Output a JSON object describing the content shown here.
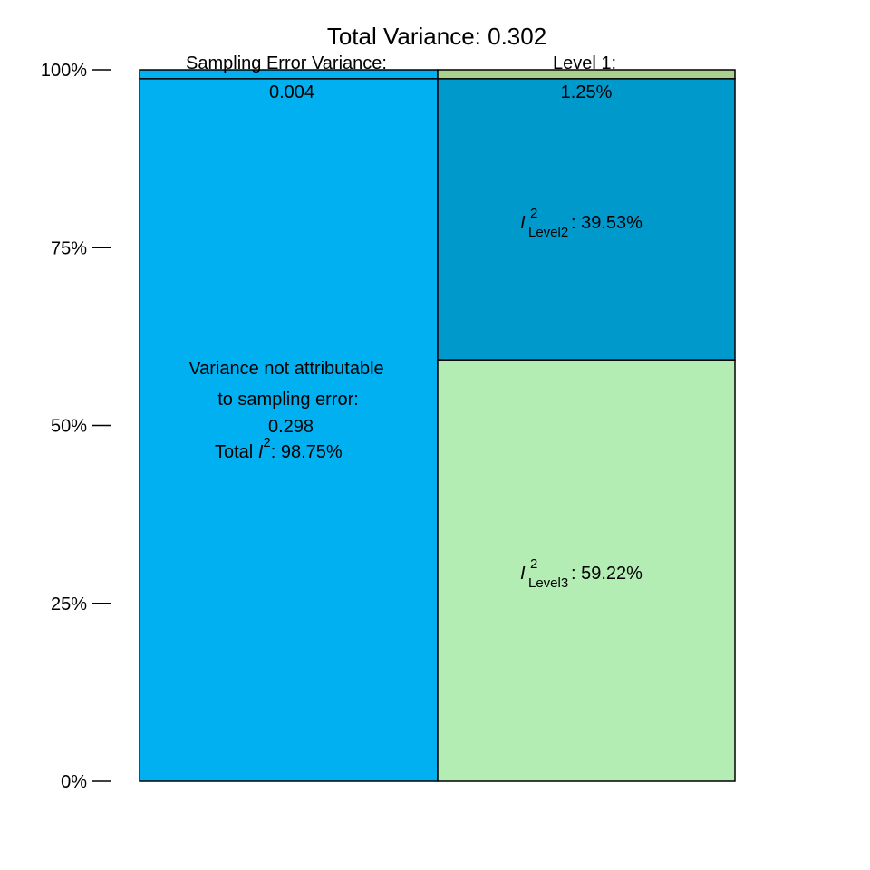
{
  "chart_data": {
    "type": "bar",
    "title": "Total Variance: 0.302",
    "ylim": [
      0,
      100
    ],
    "y_ticks": [
      0,
      25,
      50,
      75,
      100
    ],
    "y_tick_labels": [
      "0%",
      "25%",
      "50%",
      "75%",
      "100%"
    ],
    "grid": false,
    "colors": {
      "sampling_error": "#00B0F0",
      "level1": "#A9D18E",
      "level2": "#0099CC",
      "level3": "#B4EDB4",
      "border": "#000000"
    },
    "columns": [
      {
        "segments": [
          {
            "key": "not_attributable",
            "from": 0,
            "to": 98.75,
            "color": "#00B0F0"
          },
          {
            "key": "sampling_error",
            "from": 98.75,
            "to": 100,
            "color": "#00B0F0"
          }
        ]
      },
      {
        "segments": [
          {
            "key": "level3",
            "from": 0,
            "to": 59.22,
            "color": "#B4EDB4"
          },
          {
            "key": "level2",
            "from": 59.22,
            "to": 98.75,
            "color": "#0099CC"
          },
          {
            "key": "level1",
            "from": 98.75,
            "to": 100,
            "color": "#A9D18E"
          }
        ]
      }
    ],
    "labels": {
      "sampling_error_header": "Sampling Error Variance:",
      "sampling_error_value": "0.004",
      "level1_header": "Level 1:",
      "level1_value": "1.25%",
      "not_attributable_line1": "Variance not attributable",
      "not_attributable_line2": "to sampling error:",
      "not_attributable_value": "0.298",
      "total_i2_prefix": "Total ",
      "total_i2_value": ": 98.75%",
      "i2_symbol": "I",
      "i2_superscript": "2",
      "level2_subscript": "Level2",
      "level2_value": ": 39.53%",
      "level3_subscript": "Level3",
      "level3_value": ": 59.22%"
    },
    "values": {
      "total_variance": 0.302,
      "sampling_error_variance": 0.004,
      "not_attributable_variance": 0.298,
      "level1_pct": 1.25,
      "level2_pct": 39.53,
      "level3_pct": 59.22,
      "total_i2_pct": 98.75
    }
  }
}
